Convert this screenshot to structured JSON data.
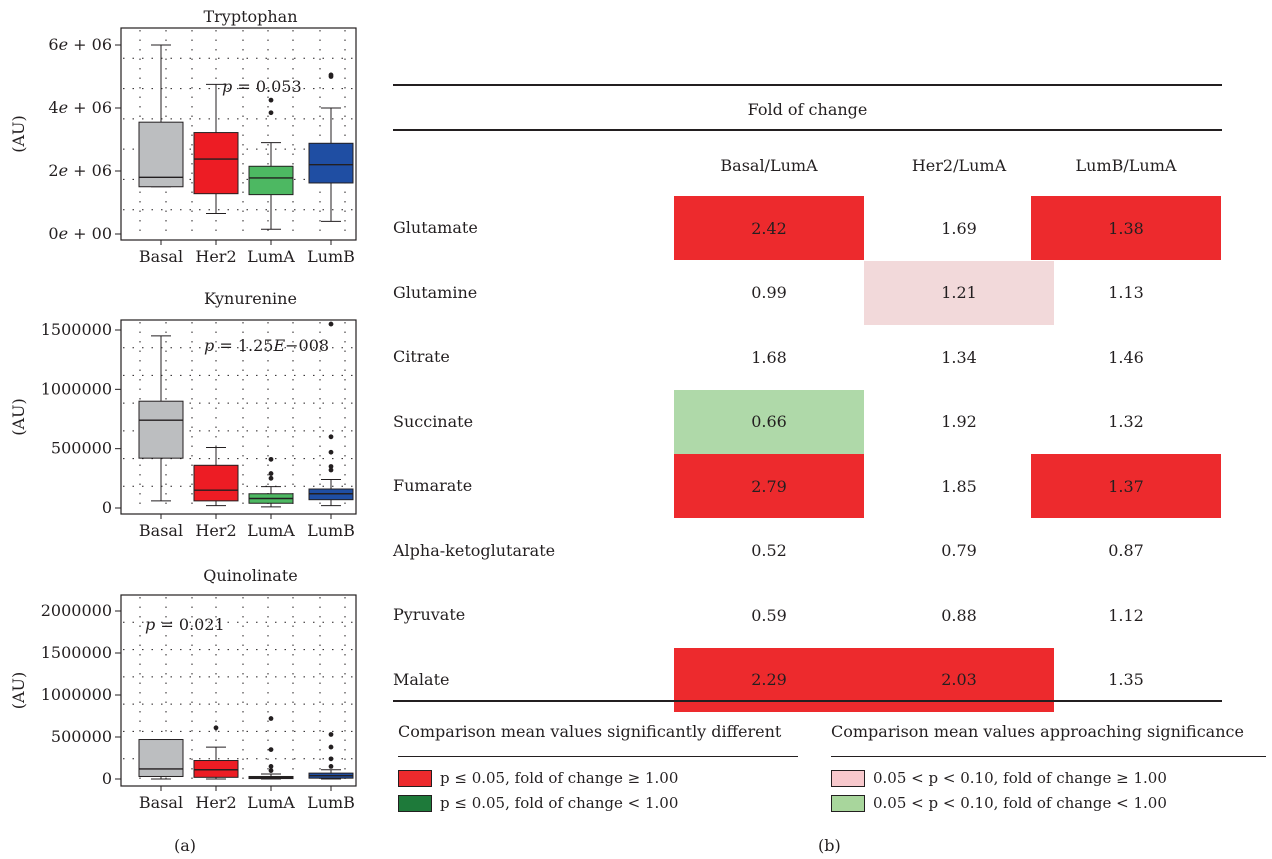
{
  "panel_a_label": "(a)",
  "panel_b_label": "(b)",
  "chart_data": [
    {
      "type": "boxplot",
      "title": "Tryptophan",
      "ylabel": "(AU)",
      "annotation": "p = 0.053",
      "ylim": [
        0,
        6000000
      ],
      "yticks": [
        0,
        2000000,
        4000000,
        6000000
      ],
      "ytick_labels": [
        "0e + 00",
        "2e + 06",
        "4e + 06",
        "6e + 06"
      ],
      "categories": [
        "Basal",
        "Her2",
        "LumA",
        "LumB"
      ],
      "colors": [
        "#bcbec0",
        "#ed1c24",
        "#4db862",
        "#1f4ea3"
      ],
      "boxes": [
        {
          "whisker_low": 1500000,
          "q1": 1500000,
          "median": 1800000,
          "q3": 3550000,
          "whisker_high": 6000000,
          "outliers": []
        },
        {
          "whisker_low": 650000,
          "q1": 1280000,
          "median": 2380000,
          "q3": 3220000,
          "whisker_high": 4750000,
          "outliers": []
        },
        {
          "whisker_low": 150000,
          "q1": 1250000,
          "median": 1780000,
          "q3": 2150000,
          "whisker_high": 2900000,
          "outliers": [
            3850000,
            4250000
          ]
        },
        {
          "whisker_low": 400000,
          "q1": 1620000,
          "median": 2200000,
          "q3": 2880000,
          "whisker_high": 4000000,
          "outliers": [
            5000000,
            5050000
          ]
        }
      ]
    },
    {
      "type": "boxplot",
      "title": "Kynurenine",
      "ylabel": "(AU)",
      "annotation": "p = 1.25E−008",
      "ylim": [
        0,
        1550000
      ],
      "yticks": [
        0,
        500000,
        1000000,
        1500000
      ],
      "ytick_labels": [
        "0",
        "500000",
        "1000000",
        "1500000"
      ],
      "categories": [
        "Basal",
        "Her2",
        "LumA",
        "LumB"
      ],
      "colors": [
        "#bcbec0",
        "#ed1c24",
        "#4db862",
        "#1f4ea3"
      ],
      "boxes": [
        {
          "whisker_low": 60000,
          "q1": 420000,
          "median": 740000,
          "q3": 900000,
          "whisker_high": 1450000,
          "outliers": []
        },
        {
          "whisker_low": 20000,
          "q1": 60000,
          "median": 150000,
          "q3": 360000,
          "whisker_high": 510000,
          "outliers": []
        },
        {
          "whisker_low": 10000,
          "q1": 40000,
          "median": 80000,
          "q3": 120000,
          "whisker_high": 180000,
          "outliers": [
            250000,
            290000,
            410000
          ]
        },
        {
          "whisker_low": 20000,
          "q1": 70000,
          "median": 120000,
          "q3": 160000,
          "whisker_high": 240000,
          "outliers": [
            320000,
            350000,
            470000,
            600000,
            1550000
          ]
        }
      ]
    },
    {
      "type": "boxplot",
      "title": "Quinolinate",
      "ylabel": "(AU)",
      "annotation": "p = 0.021",
      "ylim": [
        0,
        2100000
      ],
      "yticks": [
        0,
        500000,
        1000000,
        1500000,
        2000000
      ],
      "ytick_labels": [
        "0",
        "500000",
        "1000000",
        "1500000",
        "2000000"
      ],
      "categories": [
        "Basal",
        "Her2",
        "LumA",
        "LumB"
      ],
      "colors": [
        "#bcbec0",
        "#ed1c24",
        "#4db862",
        "#1f4ea3"
      ],
      "boxes": [
        {
          "whisker_low": 0,
          "q1": 30000,
          "median": 120000,
          "q3": 470000,
          "whisker_high": 470000,
          "outliers": []
        },
        {
          "whisker_low": 0,
          "q1": 20000,
          "median": 110000,
          "q3": 220000,
          "whisker_high": 380000,
          "outliers": [
            610000
          ]
        },
        {
          "whisker_low": 0,
          "q1": 5000,
          "median": 15000,
          "q3": 30000,
          "whisker_high": 60000,
          "outliers": [
            100000,
            150000,
            350000,
            720000
          ]
        },
        {
          "whisker_low": 0,
          "q1": 10000,
          "median": 40000,
          "q3": 70000,
          "whisker_high": 110000,
          "outliers": [
            150000,
            240000,
            380000,
            530000
          ]
        }
      ]
    },
    {
      "type": "table",
      "title": "Fold of change",
      "columns": [
        "Basal/LumA",
        "Her2/LumA",
        "LumB/LumA"
      ],
      "rows": [
        {
          "label": "Glutamate",
          "values": [
            "2.42",
            "1.69",
            "1.38"
          ],
          "highlight": [
            "red",
            "",
            "red"
          ]
        },
        {
          "label": "Glutamine",
          "values": [
            "0.99",
            "1.21",
            "1.13"
          ],
          "highlight": [
            "",
            "pink",
            ""
          ]
        },
        {
          "label": "Citrate",
          "values": [
            "1.68",
            "1.34",
            "1.46"
          ],
          "highlight": [
            "",
            "",
            ""
          ]
        },
        {
          "label": "Succinate",
          "values": [
            "0.66",
            "1.92",
            "1.32"
          ],
          "highlight": [
            "lightgreen",
            "",
            ""
          ]
        },
        {
          "label": "Fumarate",
          "values": [
            "2.79",
            "1.85",
            "1.37"
          ],
          "highlight": [
            "red",
            "",
            "red"
          ]
        },
        {
          "label": "Alpha-ketoglutarate",
          "values": [
            "0.52",
            "0.79",
            "0.87"
          ],
          "highlight": [
            "",
            "",
            ""
          ]
        },
        {
          "label": "Pyruvate",
          "values": [
            "0.59",
            "0.88",
            "1.12"
          ],
          "highlight": [
            "",
            "",
            ""
          ]
        },
        {
          "label": "Malate",
          "values": [
            "2.29",
            "2.03",
            "1.35"
          ],
          "highlight": [
            "red",
            "red",
            ""
          ]
        }
      ],
      "highlight_colors": {
        "red": "#ed2a2d",
        "pink": "#f2d9da",
        "lightgreen": "#afd9a9"
      },
      "legend": {
        "significant": {
          "title": "Comparison mean values significantly different",
          "items": [
            {
              "label": "p ≤ 0.05, fold of change ≥ 1.00",
              "color": "#ed2a2d"
            },
            {
              "label": "p ≤ 0.05, fold of change < 1.00",
              "color": "#1e7a3a"
            }
          ]
        },
        "approaching": {
          "title": "Comparison mean values approaching significance",
          "items": [
            {
              "label": "0.05 < p < 0.10, fold of change ≥ 1.00",
              "color": "#f7c8cc"
            },
            {
              "label": "0.05 < p < 0.10, fold of change < 1.00",
              "color": "#a8d69c"
            }
          ]
        }
      }
    }
  ]
}
